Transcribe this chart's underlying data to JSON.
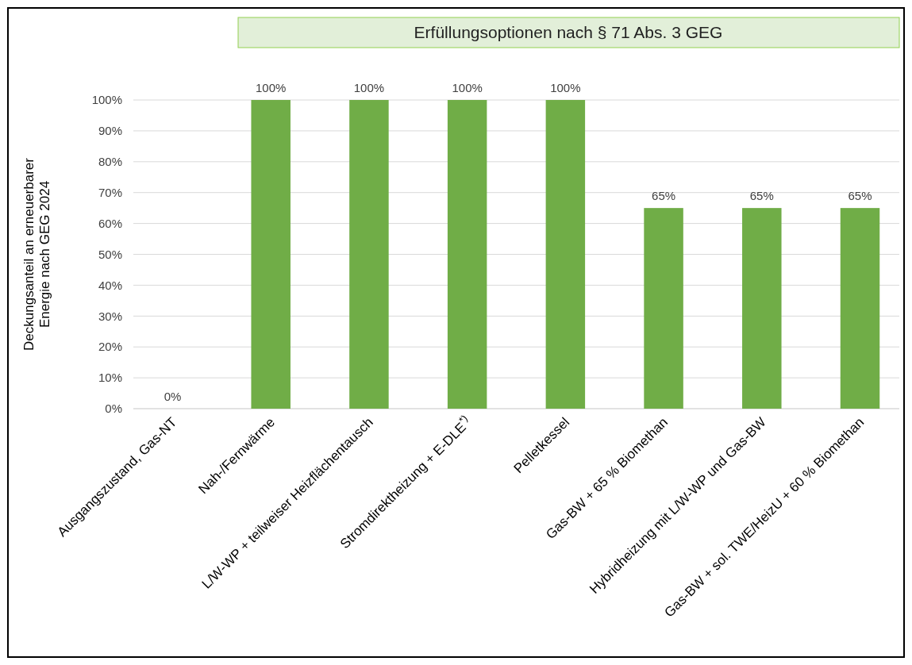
{
  "chart_data": {
    "type": "bar",
    "title": "Erfüllungsoptionen nach § 71 Abs. 3 GEG",
    "ylabel": "Deckungsanteil  an erneuerbarer\nEnergie nach GEG 2024",
    "categories": [
      "Ausgangszustand, Gas-NT",
      "Nah-/Fernwärme",
      "L/W-WP + teilweiser Heizflächentausch",
      "Stromdirektheizung + E-DLE$^{*)}$",
      "Pelletkessel",
      "Gas-BW + 65 % Biomethan",
      "Hybridheizung mit L/W-WP und Gas-BW",
      "Gas-BW + sol. TWE/HeizU + 60 % Biomethan"
    ],
    "values": [
      0,
      100,
      100,
      100,
      100,
      65,
      65,
      65
    ],
    "value_labels": [
      "0%",
      "100%",
      "100%",
      "100%",
      "100%",
      "65%",
      "65%",
      "65%"
    ],
    "color": "#70ad47",
    "ylim": [
      0,
      100
    ],
    "yticks": [
      {
        "value": 0,
        "label": "0%"
      },
      {
        "value": 10,
        "label": "10%"
      },
      {
        "value": 20,
        "label": "20%"
      },
      {
        "value": 30,
        "label": "30%"
      },
      {
        "value": 40,
        "label": "40%"
      },
      {
        "value": 50,
        "label": "50%"
      },
      {
        "value": 60,
        "label": "60%"
      },
      {
        "value": 70,
        "label": "70%"
      },
      {
        "value": 80,
        "label": "80%"
      },
      {
        "value": 90,
        "label": "90%"
      },
      {
        "value": 100,
        "label": "100%"
      }
    ],
    "grid": "y"
  }
}
